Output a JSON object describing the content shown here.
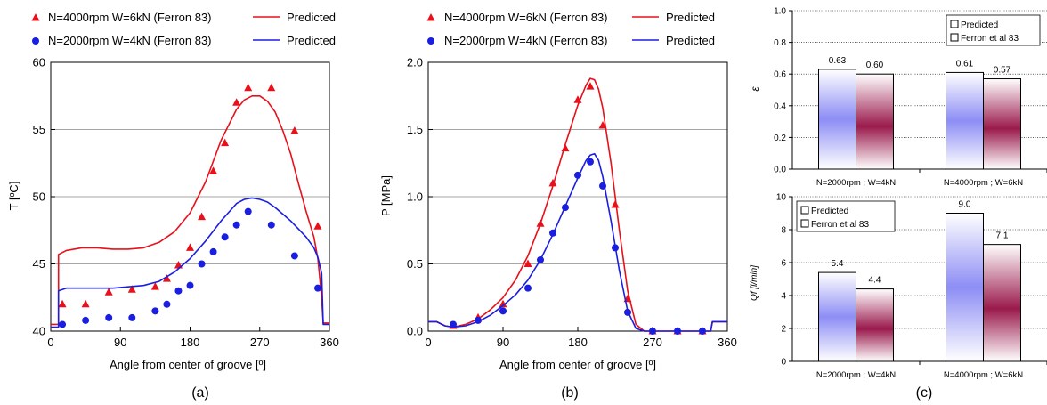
{
  "colors": {
    "red": "#e8101a",
    "blue": "#1a1ee0",
    "grid": "#888888",
    "bar_predicted": "#8d8df5",
    "bar_ferron": "#9a1a4c"
  },
  "chart_data": [
    {
      "id": "a",
      "type": "scatter",
      "caption": "(a)",
      "xlabel": "Angle from center of groove [º]",
      "ylabel": "T [ºC]",
      "xlim": [
        0,
        360
      ],
      "ylim": [
        40,
        60
      ],
      "xticks": [
        0,
        90,
        180,
        270,
        360
      ],
      "yticks": [
        40,
        45,
        50,
        55,
        60
      ],
      "grid": true,
      "legend": [
        {
          "label": "N=4000rpm W=6kN (Ferron 83)",
          "marker": "triangle",
          "color": "red"
        },
        {
          "label": "Predicted",
          "marker": "line",
          "color": "red"
        },
        {
          "label": "N=2000rpm W=4kN (Ferron 83)",
          "marker": "circle",
          "color": "blue"
        },
        {
          "label": "Predicted",
          "marker": "line",
          "color": "blue"
        }
      ],
      "series": [
        {
          "name": "N=4000rpm W=6kN (Ferron 83)",
          "kind": "points",
          "marker": "triangle",
          "color": "red",
          "x": [
            15,
            45,
            75,
            105,
            135,
            150,
            165,
            180,
            195,
            210,
            225,
            240,
            255,
            285,
            315,
            345
          ],
          "y": [
            42.0,
            42.0,
            42.9,
            43.1,
            43.3,
            43.9,
            44.9,
            46.2,
            48.5,
            51.9,
            54.0,
            57.0,
            58.1,
            58.1,
            54.9,
            47.8
          ]
        },
        {
          "name": "Predicted",
          "kind": "line",
          "color": "red",
          "x": [
            0,
            10,
            10,
            20,
            40,
            60,
            80,
            100,
            120,
            140,
            160,
            180,
            200,
            220,
            240,
            250,
            260,
            270,
            280,
            290,
            300,
            310,
            320,
            330,
            340,
            345,
            350,
            352,
            360
          ],
          "y": [
            40.5,
            40.5,
            45.7,
            46.0,
            46.2,
            46.2,
            46.1,
            46.1,
            46.2,
            46.6,
            47.4,
            48.8,
            51.1,
            54.2,
            56.5,
            57.2,
            57.5,
            57.5,
            57.1,
            56.3,
            54.9,
            53.2,
            51.0,
            48.9,
            47.0,
            45.4,
            42.5,
            40.6,
            40.6
          ]
        },
        {
          "name": "N=2000rpm W=4kN (Ferron 83)",
          "kind": "points",
          "marker": "circle",
          "color": "blue",
          "x": [
            15,
            45,
            75,
            105,
            135,
            150,
            165,
            180,
            195,
            210,
            225,
            240,
            255,
            285,
            315,
            345
          ],
          "y": [
            40.5,
            40.8,
            41.0,
            41.0,
            41.5,
            42.0,
            43.0,
            43.4,
            45.0,
            45.9,
            47.0,
            47.9,
            48.9,
            47.9,
            45.6,
            43.2
          ]
        },
        {
          "name": "Predicted",
          "kind": "line",
          "color": "blue",
          "x": [
            0,
            10,
            10,
            20,
            40,
            60,
            80,
            100,
            120,
            140,
            160,
            180,
            200,
            220,
            240,
            250,
            260,
            270,
            280,
            290,
            300,
            310,
            320,
            330,
            340,
            345,
            350,
            352,
            360
          ],
          "y": [
            40.3,
            40.3,
            43.0,
            43.2,
            43.2,
            43.2,
            43.2,
            43.3,
            43.4,
            43.7,
            44.4,
            45.4,
            46.7,
            48.2,
            49.5,
            49.8,
            49.9,
            49.8,
            49.6,
            49.2,
            48.7,
            48.2,
            47.6,
            47.0,
            46.2,
            45.5,
            44.3,
            40.5,
            40.5
          ]
        }
      ]
    },
    {
      "id": "b",
      "type": "scatter",
      "caption": "(b)",
      "xlabel": "Angle from center of groove [º]",
      "ylabel": "P [MPa]",
      "xlim": [
        0,
        360
      ],
      "ylim": [
        0,
        2.0
      ],
      "xticks": [
        0,
        90,
        180,
        270,
        360
      ],
      "yticks": [
        0.0,
        0.5,
        1.0,
        1.5,
        2.0
      ],
      "ytick_labels": [
        "0.0",
        "0.5",
        "1.0",
        "1.5",
        "2.0"
      ],
      "grid": true,
      "legend": [
        {
          "label": "N=4000rpm W=6kN (Ferron 83)",
          "marker": "triangle",
          "color": "red"
        },
        {
          "label": "Predicted",
          "marker": "line",
          "color": "red"
        },
        {
          "label": "N=2000rpm W=4kN (Ferron 83)",
          "marker": "circle",
          "color": "blue"
        },
        {
          "label": "Predicted",
          "marker": "line",
          "color": "blue"
        }
      ],
      "series": [
        {
          "name": "N=4000rpm W=6kN (Ferron 83)",
          "kind": "points",
          "marker": "triangle",
          "color": "red",
          "x": [
            30,
            60,
            90,
            120,
            135,
            150,
            165,
            180,
            195,
            210,
            225,
            240,
            270,
            300,
            330
          ],
          "y": [
            0.04,
            0.1,
            0.2,
            0.5,
            0.8,
            1.1,
            1.36,
            1.72,
            1.82,
            1.53,
            0.94,
            0.24,
            0.0,
            0.0,
            0.0
          ]
        },
        {
          "name": "Predicted",
          "kind": "line",
          "color": "red",
          "x": [
            0,
            10,
            20,
            30,
            45,
            60,
            75,
            90,
            105,
            120,
            135,
            150,
            165,
            180,
            190,
            195,
            200,
            205,
            210,
            220,
            230,
            240,
            250,
            260,
            300,
            340,
            342,
            360
          ],
          "y": [
            0.07,
            0.07,
            0.04,
            0.03,
            0.05,
            0.09,
            0.16,
            0.25,
            0.38,
            0.56,
            0.8,
            1.08,
            1.39,
            1.68,
            1.83,
            1.88,
            1.87,
            1.8,
            1.66,
            1.25,
            0.75,
            0.3,
            0.05,
            0.0,
            0.0,
            0.0,
            0.07,
            0.07
          ]
        },
        {
          "name": "N=2000rpm W=4kN (Ferron 83)",
          "kind": "points",
          "marker": "circle",
          "color": "blue",
          "x": [
            30,
            60,
            90,
            120,
            135,
            150,
            165,
            180,
            195,
            210,
            225,
            240,
            270,
            300,
            330
          ],
          "y": [
            0.05,
            0.08,
            0.15,
            0.32,
            0.53,
            0.73,
            0.92,
            1.16,
            1.26,
            1.08,
            0.62,
            0.14,
            0.0,
            0.0,
            0.0
          ]
        },
        {
          "name": "Predicted",
          "kind": "line",
          "color": "blue",
          "x": [
            0,
            10,
            20,
            30,
            45,
            60,
            75,
            90,
            105,
            120,
            135,
            150,
            165,
            180,
            190,
            195,
            200,
            205,
            210,
            220,
            230,
            240,
            250,
            260,
            300,
            340,
            342,
            360
          ],
          "y": [
            0.07,
            0.07,
            0.04,
            0.03,
            0.04,
            0.07,
            0.12,
            0.19,
            0.27,
            0.38,
            0.53,
            0.72,
            0.93,
            1.14,
            1.27,
            1.31,
            1.32,
            1.27,
            1.15,
            0.82,
            0.45,
            0.15,
            0.02,
            0.0,
            0.0,
            0.0,
            0.07,
            0.07
          ]
        }
      ]
    },
    {
      "id": "c-top",
      "type": "bar",
      "ylabel": "ε",
      "ylim": [
        0,
        1.0
      ],
      "yticks": [
        0.0,
        0.2,
        0.4,
        0.6,
        0.8,
        1.0
      ],
      "ytick_labels": [
        "0.0",
        "0.2",
        "0.4",
        "0.6",
        "0.8",
        "1.0"
      ],
      "categories": [
        "N=2000rpm ; W=4kN",
        "N=4000rpm ; W=6kN"
      ],
      "series": [
        {
          "name": "Predicted",
          "values": [
            0.63,
            0.61
          ],
          "labels": [
            "0.63",
            "0.61"
          ]
        },
        {
          "name": "Ferron et al 83",
          "values": [
            0.6,
            0.57
          ],
          "labels": [
            "0.60",
            "0.57"
          ]
        }
      ],
      "legend_position": "top-right",
      "grid": true
    },
    {
      "id": "c-bottom",
      "type": "bar",
      "caption": "(c)",
      "ylabel": "Qf [l/min]",
      "ylim": [
        0,
        10
      ],
      "yticks": [
        0,
        2,
        4,
        6,
        8,
        10
      ],
      "ytick_labels": [
        "0",
        "2",
        "4",
        "6",
        "8",
        "10"
      ],
      "categories": [
        "N=2000rpm ; W=4kN",
        "N=4000rpm ; W=6kN"
      ],
      "series": [
        {
          "name": "Predicted",
          "values": [
            5.4,
            9.0
          ],
          "labels": [
            "5.4",
            "9.0"
          ]
        },
        {
          "name": "Ferron et al 83",
          "values": [
            4.4,
            7.1
          ],
          "labels": [
            "4.4",
            "7.1"
          ]
        }
      ],
      "legend_position": "top-left",
      "grid": true
    }
  ]
}
